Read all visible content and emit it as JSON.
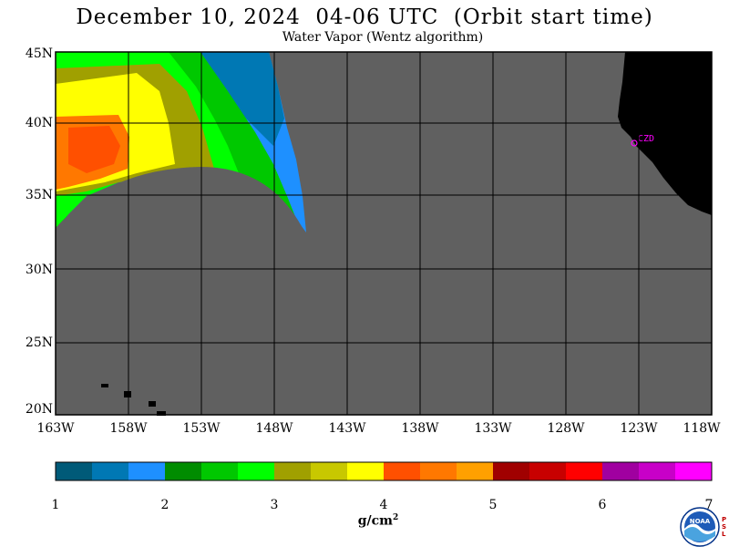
{
  "header": {
    "title": "December 10, 2024  04-06 UTC  (Orbit start time)",
    "subtitle": "Water Vapor (Wentz algorithm)"
  },
  "map": {
    "lat_labels": [
      "45N",
      "40N",
      "35N",
      "30N",
      "25N",
      "20N"
    ],
    "lon_labels": [
      "163W",
      "158W",
      "153W",
      "148W",
      "143W",
      "138W",
      "133W",
      "128W",
      "123W",
      "118W"
    ],
    "station_label": "CZD",
    "land_color": "#000000",
    "nodata_color": "#606060",
    "station_color": "#ff00ff"
  },
  "colorbar": {
    "colors": [
      "#005a78",
      "#0078b4",
      "#1e90ff",
      "#008c00",
      "#00c800",
      "#00ff00",
      "#a0a000",
      "#c8c800",
      "#ffff00",
      "#ff5000",
      "#ff7800",
      "#ffa000",
      "#a00000",
      "#c80000",
      "#ff0000",
      "#a000a0",
      "#c800c8",
      "#ff00ff"
    ],
    "tick_labels": [
      "1",
      "2",
      "3",
      "4",
      "5",
      "6",
      "7"
    ],
    "unit_label": "g/cm",
    "unit_exponent": "2"
  },
  "logo": {
    "text": "NOAA",
    "side_text": "PSL"
  }
}
